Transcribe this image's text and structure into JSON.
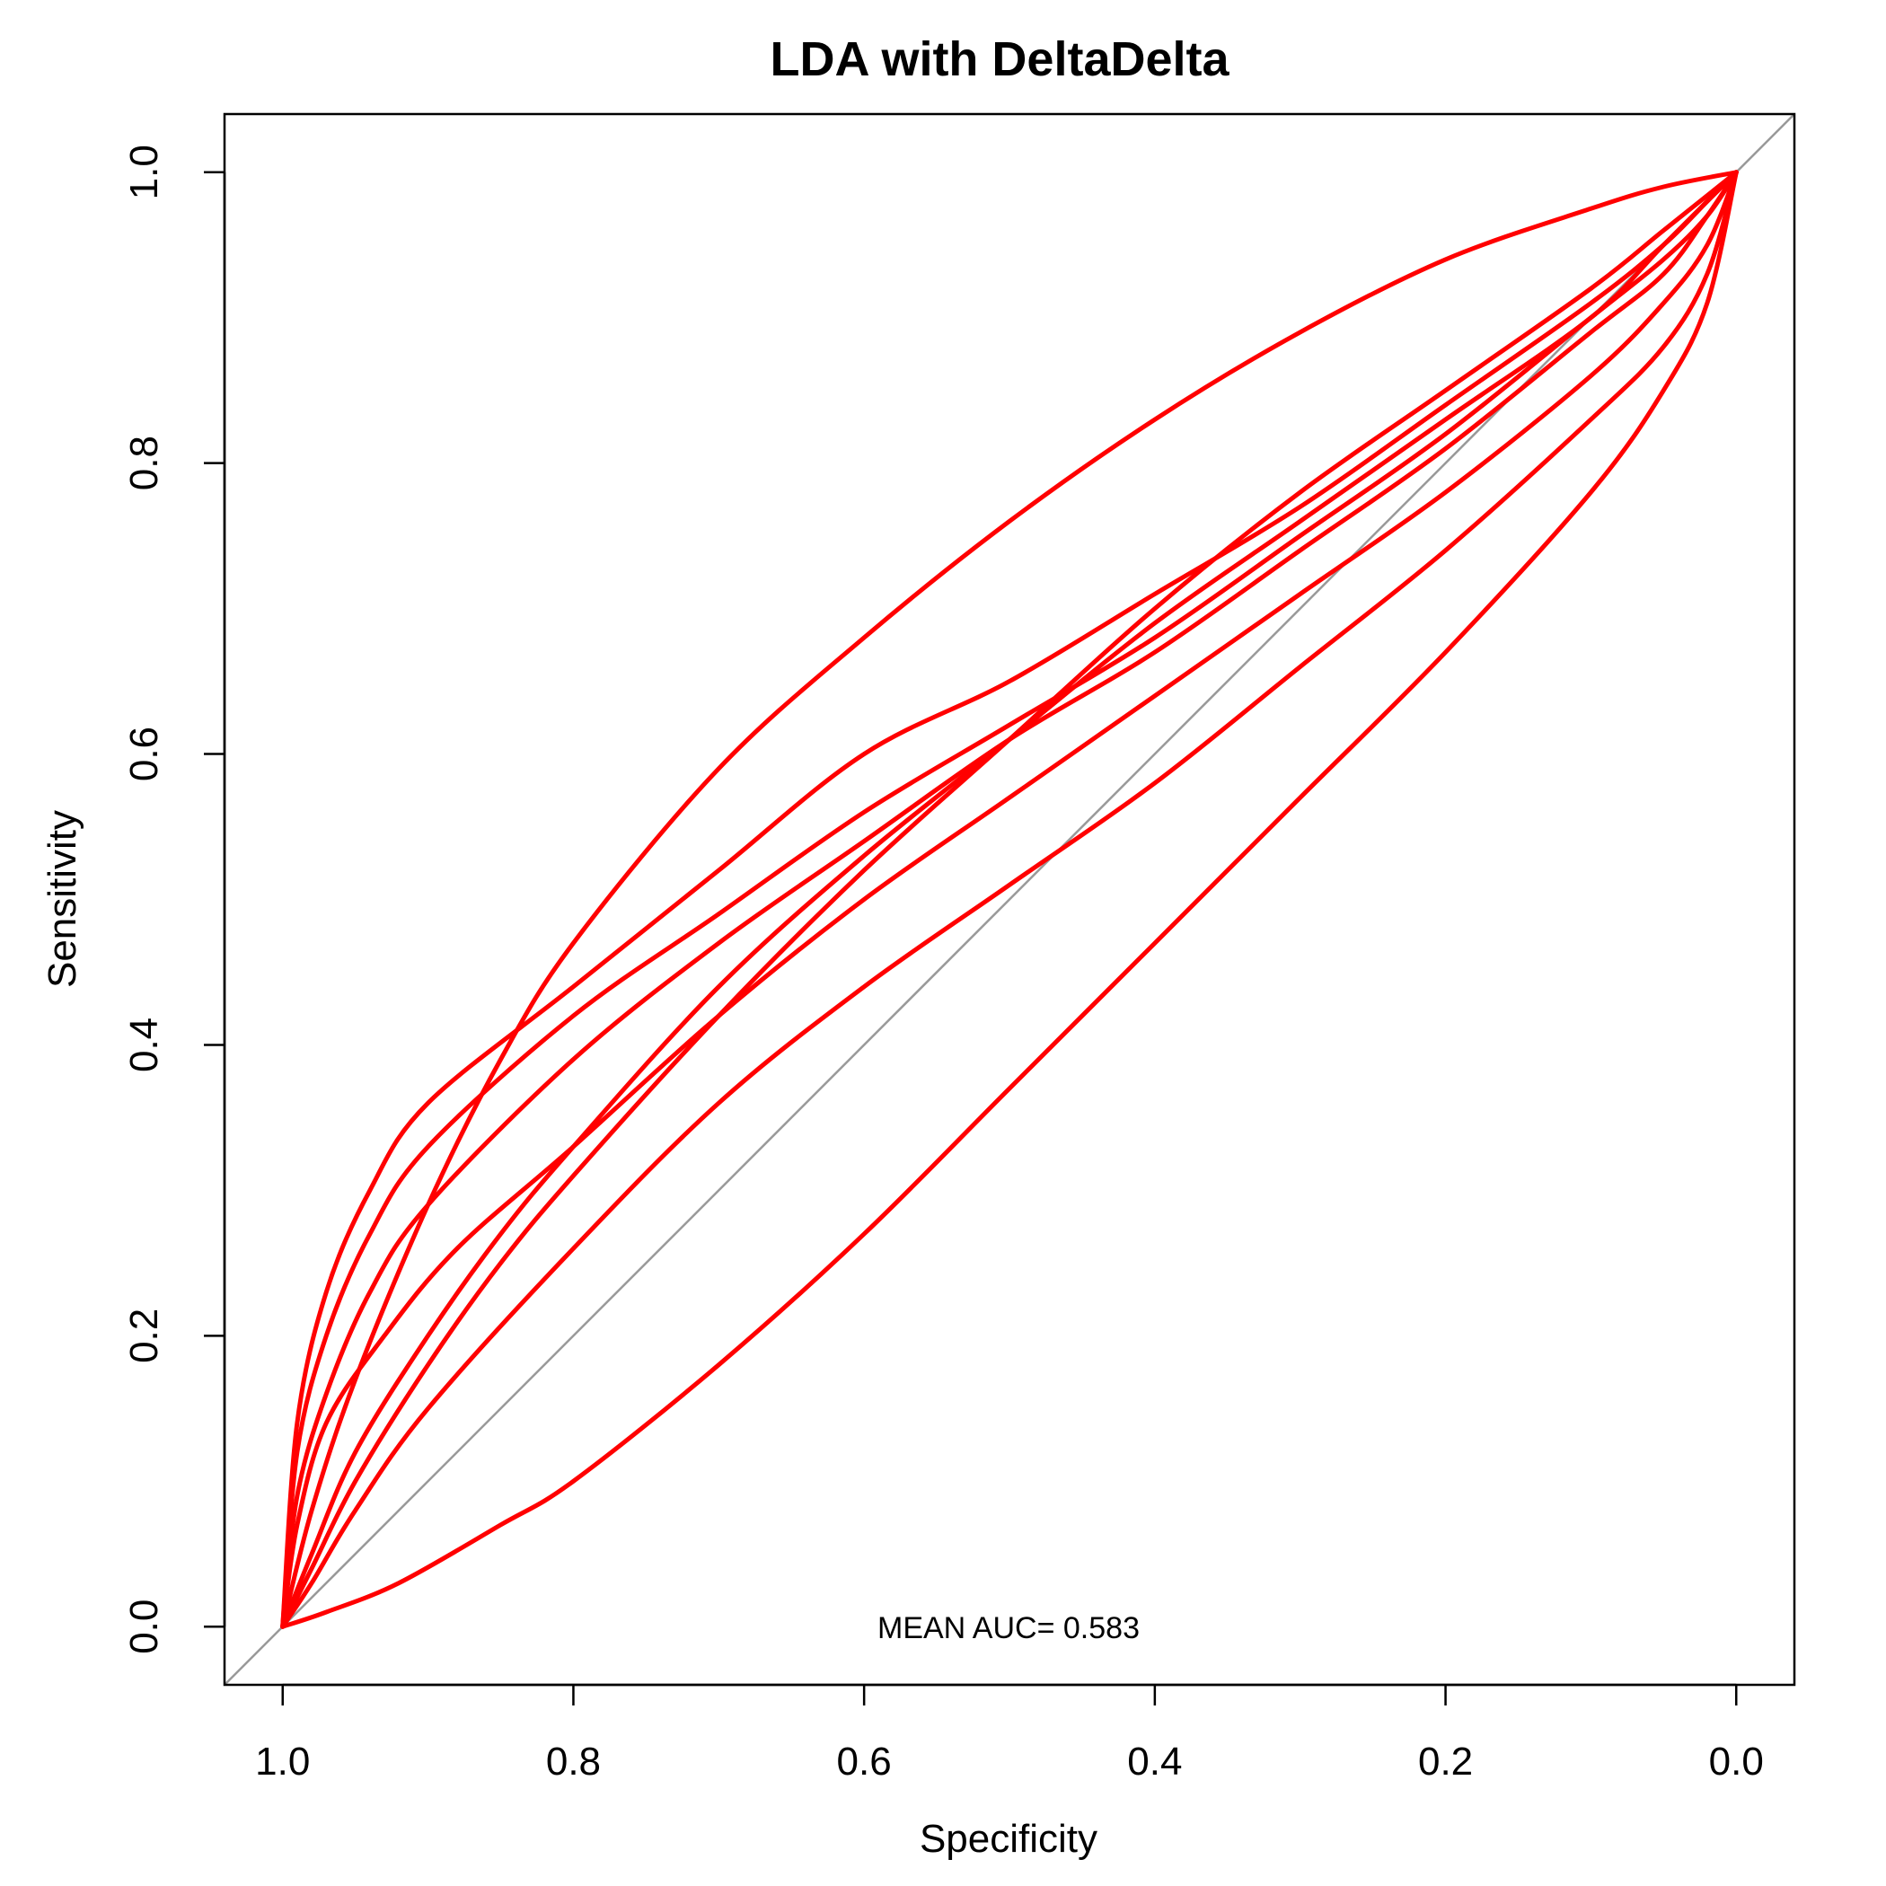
{
  "chart_data": {
    "type": "line",
    "title": "LDA with DeltaDelta",
    "xlabel": "Specificity",
    "ylabel": "Sensitivity",
    "xlim": [
      1.04,
      -0.04
    ],
    "ylim": [
      -0.04,
      1.04
    ],
    "x_reversed": true,
    "x_ticks": [
      "1.0",
      "0.8",
      "0.6",
      "0.4",
      "0.2",
      "0.0"
    ],
    "x_tick_values": [
      1.0,
      0.8,
      0.6,
      0.4,
      0.2,
      0.0
    ],
    "y_ticks": [
      "0.0",
      "0.2",
      "0.4",
      "0.6",
      "0.8",
      "1.0"
    ],
    "y_tick_values": [
      0.0,
      0.2,
      0.4,
      0.6,
      0.8,
      1.0
    ],
    "grid": false,
    "annotation": "MEAN AUC= 0.583",
    "reference_line": {
      "color": "#999999",
      "x": [
        1.04,
        -0.04
      ],
      "y": [
        -0.04,
        1.04
      ]
    },
    "curve_color": "#ff0000",
    "series": [
      {
        "x": [
          1.0,
          0.98,
          0.95,
          0.9,
          0.85,
          0.8,
          0.7,
          0.6,
          0.5,
          0.4,
          0.3,
          0.2,
          0.1,
          0.05,
          0.0
        ],
        "y": [
          0.0,
          0.08,
          0.17,
          0.29,
          0.39,
          0.47,
          0.59,
          0.68,
          0.76,
          0.83,
          0.89,
          0.94,
          0.975,
          0.99,
          1.0
        ]
      },
      {
        "x": [
          1.0,
          0.99,
          0.97,
          0.94,
          0.9,
          0.8,
          0.7,
          0.6,
          0.5,
          0.4,
          0.3,
          0.2,
          0.1,
          0.05,
          0.02,
          0.0
        ],
        "y": [
          0.0,
          0.14,
          0.23,
          0.3,
          0.36,
          0.44,
          0.52,
          0.6,
          0.65,
          0.71,
          0.77,
          0.84,
          0.91,
          0.95,
          0.98,
          1.0
        ]
      },
      {
        "x": [
          1.0,
          0.99,
          0.97,
          0.94,
          0.9,
          0.8,
          0.7,
          0.6,
          0.5,
          0.4,
          0.3,
          0.2,
          0.1,
          0.05,
          0.02,
          0.0
        ],
        "y": [
          0.0,
          0.12,
          0.2,
          0.27,
          0.33,
          0.42,
          0.49,
          0.56,
          0.62,
          0.68,
          0.75,
          0.82,
          0.9,
          0.94,
          0.97,
          1.0
        ]
      },
      {
        "x": [
          1.0,
          0.99,
          0.97,
          0.94,
          0.9,
          0.8,
          0.7,
          0.6,
          0.5,
          0.4,
          0.3,
          0.2,
          0.1,
          0.05,
          0.02,
          0.0
        ],
        "y": [
          0.0,
          0.09,
          0.16,
          0.23,
          0.29,
          0.39,
          0.47,
          0.54,
          0.61,
          0.67,
          0.74,
          0.81,
          0.89,
          0.93,
          0.97,
          1.0
        ]
      },
      {
        "x": [
          1.0,
          0.99,
          0.97,
          0.93,
          0.88,
          0.8,
          0.7,
          0.6,
          0.5,
          0.4,
          0.3,
          0.2,
          0.1,
          0.05,
          0.02,
          0.0
        ],
        "y": [
          0.0,
          0.07,
          0.14,
          0.2,
          0.26,
          0.33,
          0.42,
          0.5,
          0.57,
          0.64,
          0.71,
          0.78,
          0.86,
          0.91,
          0.95,
          1.0
        ]
      },
      {
        "x": [
          1.0,
          0.98,
          0.95,
          0.9,
          0.85,
          0.8,
          0.7,
          0.6,
          0.5,
          0.4,
          0.3,
          0.2,
          0.1,
          0.05,
          0.0
        ],
        "y": [
          0.0,
          0.05,
          0.12,
          0.2,
          0.27,
          0.33,
          0.44,
          0.53,
          0.61,
          0.69,
          0.76,
          0.83,
          0.9,
          0.95,
          1.0
        ]
      },
      {
        "x": [
          1.0,
          0.98,
          0.95,
          0.9,
          0.85,
          0.8,
          0.7,
          0.6,
          0.5,
          0.4,
          0.3,
          0.2,
          0.1,
          0.05,
          0.0
        ],
        "y": [
          0.0,
          0.04,
          0.1,
          0.18,
          0.25,
          0.31,
          0.42,
          0.52,
          0.61,
          0.7,
          0.78,
          0.85,
          0.92,
          0.96,
          1.0
        ]
      },
      {
        "x": [
          1.0,
          0.98,
          0.95,
          0.9,
          0.8,
          0.7,
          0.6,
          0.5,
          0.4,
          0.3,
          0.2,
          0.1,
          0.05,
          0.02,
          0.0
        ],
        "y": [
          0.0,
          0.03,
          0.08,
          0.15,
          0.26,
          0.36,
          0.44,
          0.51,
          0.58,
          0.66,
          0.74,
          0.83,
          0.88,
          0.93,
          1.0
        ]
      },
      {
        "x": [
          1.0,
          0.97,
          0.92,
          0.85,
          0.8,
          0.7,
          0.6,
          0.5,
          0.4,
          0.3,
          0.2,
          0.1,
          0.05,
          0.02,
          0.0
        ],
        "y": [
          0.0,
          0.01,
          0.03,
          0.07,
          0.1,
          0.18,
          0.27,
          0.37,
          0.47,
          0.57,
          0.67,
          0.78,
          0.85,
          0.91,
          1.0
        ]
      }
    ]
  }
}
